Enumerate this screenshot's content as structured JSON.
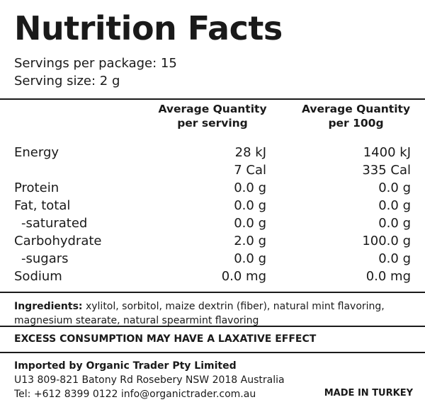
{
  "title": "Nutrition Facts",
  "servings_per_package": "Servings per package: 15",
  "serving_size": "Serving size: 2 g",
  "columns": {
    "per_serving": {
      "line1": "Average Quantity",
      "line2": "per serving"
    },
    "per_100g": {
      "line1": "Average Quantity",
      "line2": "per 100g"
    }
  },
  "rows": [
    {
      "label": "Energy",
      "per_serving": "28 kJ",
      "per_100g": "1400 kJ",
      "indent": false
    },
    {
      "label": "",
      "per_serving": "7 Cal",
      "per_100g": "335 Cal",
      "indent": false
    },
    {
      "label": "Protein",
      "per_serving": "0.0 g",
      "per_100g": "0.0 g",
      "indent": false
    },
    {
      "label": "Fat, total",
      "per_serving": "0.0 g",
      "per_100g": "0.0 g",
      "indent": false
    },
    {
      "label": "-saturated",
      "per_serving": "0.0 g",
      "per_100g": "0.0 g",
      "indent": true
    },
    {
      "label": "Carbohydrate",
      "per_serving": "2.0 g",
      "per_100g": "100.0 g",
      "indent": false
    },
    {
      "label": "-sugars",
      "per_serving": "0.0 g",
      "per_100g": "0.0 g",
      "indent": true
    },
    {
      "label": "Sodium",
      "per_serving": "0.0 mg",
      "per_100g": "0.0 mg",
      "indent": false
    }
  ],
  "ingredients": {
    "label": "Ingredients:",
    "text": " xylitol, sorbitol, maize dextrin (fiber), natural mint flavoring, magnesium stearate, natural spearmint flavoring"
  },
  "warning": "EXCESS CONSUMPTION MAY HAVE A LAXATIVE EFFECT",
  "importer": {
    "name": "Imported by Organic Trader Pty Limited",
    "address": "U13 809-821 Batony Rd Rosebery NSW 2018 Australia",
    "contact": "Tel: +612 8399 0122 info@organictrader.com.au"
  },
  "origin": "MADE IN TURKEY"
}
